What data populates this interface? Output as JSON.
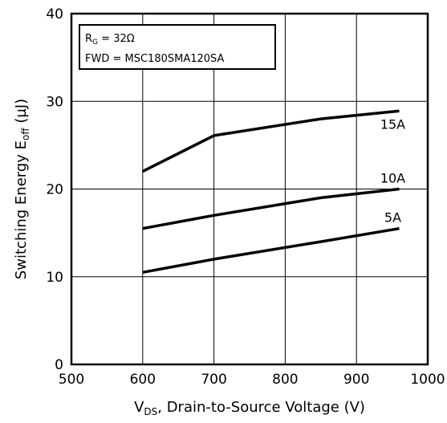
{
  "chart_data": {
    "type": "line",
    "xlabel_main": "V",
    "xlabel_sub": "DS",
    "xlabel_rest": ", Drain-to-Source Voltage (V)",
    "ylabel_main": "Switching Energy E",
    "ylabel_sub": "off",
    "ylabel_rest": " (µJ)",
    "xlim": [
      500,
      1000
    ],
    "ylim": [
      0,
      40
    ],
    "x_ticks": [
      "500",
      "600",
      "700",
      "800",
      "900",
      "1000"
    ],
    "y_ticks": [
      "0",
      "10",
      "20",
      "30",
      "40"
    ],
    "grid": true,
    "legend_box": {
      "line1_main": "R",
      "line1_sub": "G",
      "line1_rest": " = 32Ω",
      "line2": "FWD = MSC180SMA120SA"
    },
    "series": [
      {
        "name": "15A",
        "x": [
          600,
          700,
          850,
          960
        ],
        "y": [
          22,
          26.1,
          28,
          28.9
        ]
      },
      {
        "name": "10A",
        "x": [
          600,
          700,
          850,
          960
        ],
        "y": [
          15.5,
          17,
          19,
          20
        ]
      },
      {
        "name": "5A",
        "x": [
          600,
          700,
          850,
          960
        ],
        "y": [
          10.5,
          12,
          14,
          15.5
        ]
      }
    ]
  }
}
